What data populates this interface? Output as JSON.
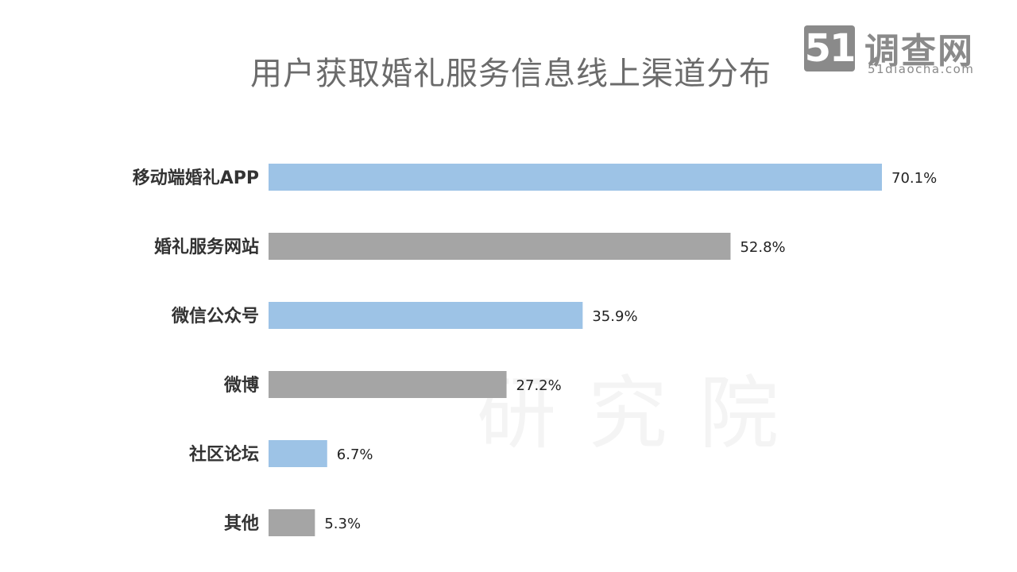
{
  "title": "用户获取婚礼服务信息线上渠道分布",
  "logo": {
    "number": "51",
    "name": "调查网",
    "url": "51diaocha.com"
  },
  "watermark": {
    "text": "研究院"
  },
  "colors": {
    "blue": "#9DC3E6",
    "gray": "#A5A5A5"
  },
  "chart_data": {
    "type": "bar",
    "orientation": "horizontal",
    "categories": [
      "移动端婚礼APP",
      "婚礼服务网站",
      "微信公众号",
      "微博",
      "社区论坛",
      "其他"
    ],
    "values": [
      70.1,
      52.8,
      35.9,
      27.2,
      6.7,
      5.3
    ],
    "value_labels": [
      "70.1%",
      "52.8%",
      "35.9%",
      "27.2%",
      "6.7%",
      "5.3%"
    ],
    "bar_colors": [
      "#9DC3E6",
      "#A5A5A5",
      "#9DC3E6",
      "#A5A5A5",
      "#9DC3E6",
      "#A5A5A5"
    ],
    "xlim": [
      0,
      70.1
    ],
    "grid": false,
    "legend": "none"
  }
}
